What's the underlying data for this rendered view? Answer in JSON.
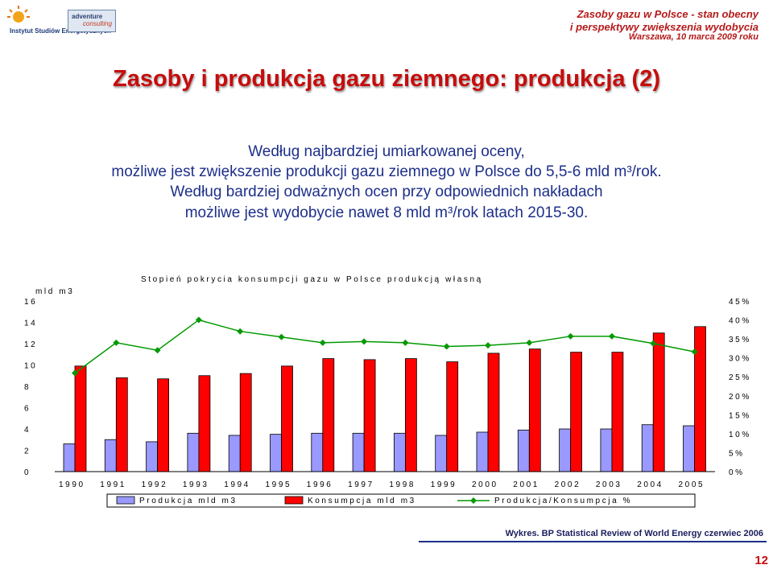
{
  "header": {
    "logo_left_text": "Instytut Studiów Energetycznych",
    "logo_mid_line1": "adventure",
    "logo_mid_line2": "consulting",
    "conference_title": "Zasoby gazu w Polsce - stan obecny",
    "conference_subtitle": "i perspektywy zwiększenia wydobycia",
    "conference_place_date": "Warszawa, 10 marca 2009 roku"
  },
  "slide": {
    "title": "Zasoby i produkcja gazu ziemnego: produkcja (2)",
    "text_line1": "Według najbardziej umiarkowanej oceny,",
    "text_line2": "możliwe jest zwiększenie produkcji gazu ziemnego w Polsce do 5,5-6 mld m³/rok.",
    "text_line3": "Według bardziej odważnych ocen przy odpowiednich nakładach",
    "text_line4": "możliwe jest wydobycie nawet 8 mld m³/rok latach 2015-30.",
    "source": "Wykres. BP Statistical Review of World Energy czerwiec 2006",
    "page_number": "12"
  },
  "chart_data": {
    "type": "bar",
    "title": "Stopień pokrycia konsumpcji gazu w Polsce produkcją własną",
    "ylabel": "mld m3",
    "categories": [
      "1990",
      "1991",
      "1992",
      "1993",
      "1994",
      "1995",
      "1996",
      "1997",
      "1998",
      "1999",
      "2000",
      "2001",
      "2002",
      "2003",
      "2004",
      "2005"
    ],
    "ylim": [
      0,
      16
    ],
    "yticks": [
      "0",
      "2",
      "4",
      "6",
      "8",
      "10",
      "12",
      "14",
      "16"
    ],
    "y2lim": [
      0,
      45
    ],
    "y2ticks": [
      "0%",
      "5%",
      "10%",
      "15%",
      "20%",
      "25%",
      "30%",
      "35%",
      "40%",
      "45%"
    ],
    "series": [
      {
        "name": "Produkcja mld m3",
        "type": "bar",
        "axis": "left",
        "color": "#9999ff",
        "values": [
          2.6,
          3.0,
          2.8,
          3.6,
          3.4,
          3.5,
          3.6,
          3.6,
          3.6,
          3.4,
          3.7,
          3.9,
          4.0,
          4.0,
          4.4,
          4.3
        ]
      },
      {
        "name": "Konsumpcja mld m3",
        "type": "bar",
        "axis": "left",
        "color": "#ff0000",
        "values": [
          9.9,
          8.8,
          8.7,
          9.0,
          9.2,
          9.9,
          10.6,
          10.5,
          10.6,
          10.3,
          11.1,
          11.5,
          11.2,
          11.2,
          13.0,
          13.6
        ]
      },
      {
        "name": "Produkcja/Konsumpcja %",
        "type": "line",
        "axis": "right",
        "color": "#009900",
        "values": [
          26.0,
          34.0,
          32.0,
          40.0,
          37.0,
          35.5,
          34.0,
          34.3,
          34.0,
          33.0,
          33.3,
          34.0,
          35.7,
          35.7,
          33.8,
          31.6
        ]
      }
    ]
  }
}
